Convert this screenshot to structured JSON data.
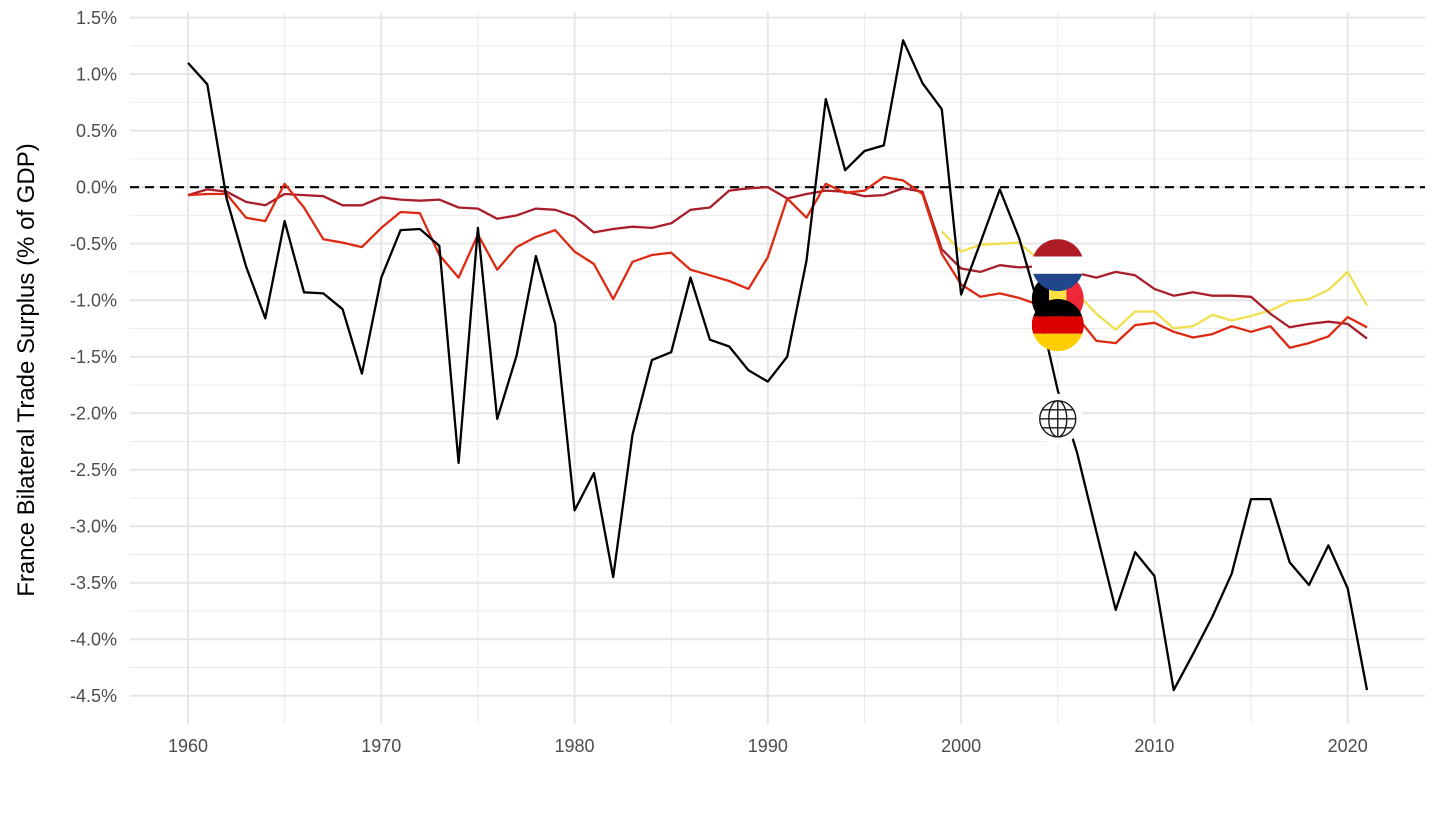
{
  "chart_data": {
    "type": "line",
    "title": "",
    "xlabel": "",
    "ylabel": "France Bilateral Trade Surplus (% of GDP)",
    "xlim": [
      1957,
      2024
    ],
    "ylim": [
      -4.75,
      1.55
    ],
    "x_ticks": [
      1960,
      1970,
      1980,
      1990,
      2000,
      2010,
      2020
    ],
    "x_tick_labels": [
      "1960",
      "1970",
      "1980",
      "1990",
      "2000",
      "2010",
      "2020"
    ],
    "y_ticks": [
      1.5,
      1.0,
      0.5,
      0.0,
      -0.5,
      -1.0,
      -1.5,
      -2.0,
      -2.5,
      -3.0,
      -3.5,
      -4.0,
      -4.5
    ],
    "y_tick_labels": [
      "1.5%",
      "1.0%",
      "0.5%",
      "0.0%",
      "-0.5%",
      "-1.0%",
      "-1.5%",
      "-2.0%",
      "-2.5%",
      "-3.0%",
      "-3.5%",
      "-4.0%",
      "-4.5%"
    ],
    "grid": true,
    "reference_line": {
      "y": 0,
      "style": "dashed",
      "color": "#000000"
    },
    "series": [
      {
        "key": "world",
        "icon": "globe-icon",
        "color": "#000000",
        "x": [
          1960,
          1961,
          1962,
          1963,
          1964,
          1965,
          1966,
          1967,
          1968,
          1969,
          1970,
          1971,
          1972,
          1973,
          1974,
          1975,
          1976,
          1977,
          1978,
          1979,
          1980,
          1981,
          1982,
          1983,
          1984,
          1985,
          1986,
          1987,
          1988,
          1989,
          1990,
          1991,
          1992,
          1993,
          1994,
          1995,
          1996,
          1997,
          1998,
          1999,
          2000,
          2001,
          2002,
          2003,
          2004,
          2005,
          2006,
          2007,
          2008,
          2009,
          2010,
          2011,
          2012,
          2013,
          2014,
          2015,
          2016,
          2017,
          2018,
          2019,
          2020,
          2021
        ],
        "y": [
          1.1,
          0.91,
          -0.1,
          -0.7,
          -1.16,
          -0.3,
          -0.93,
          -0.94,
          -1.08,
          -1.65,
          -0.8,
          -0.38,
          -0.37,
          -0.52,
          -2.44,
          -0.36,
          -2.05,
          -1.49,
          -0.61,
          -1.21,
          -2.86,
          -2.53,
          -3.45,
          -2.19,
          -1.53,
          -1.46,
          -0.8,
          -1.35,
          -1.41,
          -1.62,
          -1.72,
          -1.5,
          -0.65,
          0.78,
          0.15,
          0.32,
          0.37,
          1.3,
          0.92,
          0.69,
          -0.95,
          -0.49,
          -0.02,
          -0.45,
          -1.05,
          -1.8,
          -2.35,
          -3.05,
          -3.74,
          -3.23,
          -3.44,
          -4.45,
          -4.13,
          -3.8,
          -3.42,
          -2.76,
          -2.76,
          -3.32,
          -3.52,
          -3.17,
          -3.55,
          -4.45
        ]
      },
      {
        "key": "germany",
        "icon": "germany-flag-icon",
        "color": "#dd2a12",
        "x": [
          1960,
          1961,
          1962,
          1963,
          1964,
          1965,
          1966,
          1967,
          1968,
          1969,
          1970,
          1971,
          1972,
          1973,
          1974,
          1975,
          1976,
          1977,
          1978,
          1979,
          1980,
          1981,
          1982,
          1983,
          1984,
          1985,
          1986,
          1987,
          1988,
          1989,
          1990,
          1991,
          1992,
          1993,
          1994,
          1995,
          1996,
          1997,
          1998,
          1999,
          2000,
          2001,
          2002,
          2003,
          2004,
          2005,
          2006,
          2007,
          2008,
          2009,
          2010,
          2011,
          2012,
          2013,
          2014,
          2015,
          2016,
          2017,
          2018,
          2019,
          2020,
          2021
        ],
        "y": [
          -0.07,
          -0.06,
          -0.06,
          -0.27,
          -0.3,
          0.03,
          -0.18,
          -0.46,
          -0.49,
          -0.53,
          -0.36,
          -0.22,
          -0.23,
          -0.6,
          -0.8,
          -0.42,
          -0.73,
          -0.53,
          -0.44,
          -0.38,
          -0.57,
          -0.68,
          -0.99,
          -0.66,
          -0.6,
          -0.58,
          -0.73,
          -0.78,
          -0.83,
          -0.9,
          -0.62,
          -0.1,
          -0.27,
          0.03,
          -0.05,
          -0.03,
          0.09,
          0.06,
          -0.06,
          -0.59,
          -0.86,
          -0.97,
          -0.94,
          -0.98,
          -1.04,
          -1.1,
          -1.15,
          -1.36,
          -1.38,
          -1.22,
          -1.2,
          -1.28,
          -1.33,
          -1.3,
          -1.23,
          -1.28,
          -1.23,
          -1.42,
          -1.38,
          -1.32,
          -1.15,
          -1.24
        ]
      },
      {
        "key": "belgium",
        "icon": "belgium-flag-icon",
        "color": "#a91e2c",
        "x": [
          1960,
          1961,
          1962,
          1963,
          1964,
          1965,
          1966,
          1967,
          1968,
          1969,
          1970,
          1971,
          1972,
          1973,
          1974,
          1975,
          1976,
          1977,
          1978,
          1979,
          1980,
          1981,
          1982,
          1983,
          1984,
          1985,
          1986,
          1987,
          1988,
          1989,
          1990,
          1991,
          1992,
          1993,
          1994,
          1995,
          1996,
          1997,
          1998,
          1999,
          2000,
          2001,
          2002,
          2003,
          2004,
          2005,
          2006,
          2007,
          2008,
          2009,
          2010,
          2011,
          2012,
          2013,
          2014,
          2015,
          2016,
          2017,
          2018,
          2019,
          2020,
          2021
        ],
        "y": [
          -0.07,
          -0.02,
          -0.04,
          -0.13,
          -0.16,
          -0.06,
          -0.07,
          -0.08,
          -0.16,
          -0.16,
          -0.09,
          -0.11,
          -0.12,
          -0.11,
          -0.18,
          -0.19,
          -0.28,
          -0.25,
          -0.19,
          -0.2,
          -0.26,
          -0.4,
          -0.37,
          -0.35,
          -0.36,
          -0.32,
          -0.2,
          -0.18,
          -0.03,
          -0.01,
          0.0,
          -0.1,
          -0.06,
          -0.03,
          -0.04,
          -0.08,
          -0.07,
          -0.01,
          -0.04,
          -0.55,
          -0.72,
          -0.75,
          -0.69,
          -0.71,
          -0.7,
          -0.72,
          -0.76,
          -0.8,
          -0.75,
          -0.78,
          -0.9,
          -0.96,
          -0.93,
          -0.96,
          -0.96,
          -0.97,
          -1.12,
          -1.24,
          -1.21,
          -1.19,
          -1.21,
          -1.34
        ]
      },
      {
        "key": "netherlands",
        "icon": "netherlands-flag-icon",
        "color": "#f0e050",
        "x": [
          1999,
          2000,
          2001,
          2002,
          2003,
          2004,
          2005,
          2006,
          2007,
          2008,
          2009,
          2010,
          2011,
          2012,
          2013,
          2014,
          2015,
          2016,
          2017,
          2018,
          2019,
          2020,
          2021
        ],
        "y": [
          -0.39,
          -0.57,
          -0.51,
          -0.5,
          -0.49,
          -0.64,
          -0.79,
          -0.94,
          -1.12,
          -1.26,
          -1.1,
          -1.1,
          -1.25,
          -1.23,
          -1.13,
          -1.18,
          -1.14,
          -1.09,
          -1.01,
          -0.99,
          -0.91,
          -0.75,
          -1.05
        ]
      }
    ],
    "markers": [
      {
        "series": "netherlands",
        "x": 2005,
        "y": -0.69,
        "icon": "netherlands-flag-icon"
      },
      {
        "series": "belgium",
        "x": 2005,
        "y": -0.99,
        "icon": "belgium-flag-icon"
      },
      {
        "series": "germany",
        "x": 2005,
        "y": -1.22,
        "icon": "germany-flag-icon"
      },
      {
        "series": "world",
        "x": 2005,
        "y": -2.05,
        "icon": "globe-icon"
      }
    ]
  }
}
